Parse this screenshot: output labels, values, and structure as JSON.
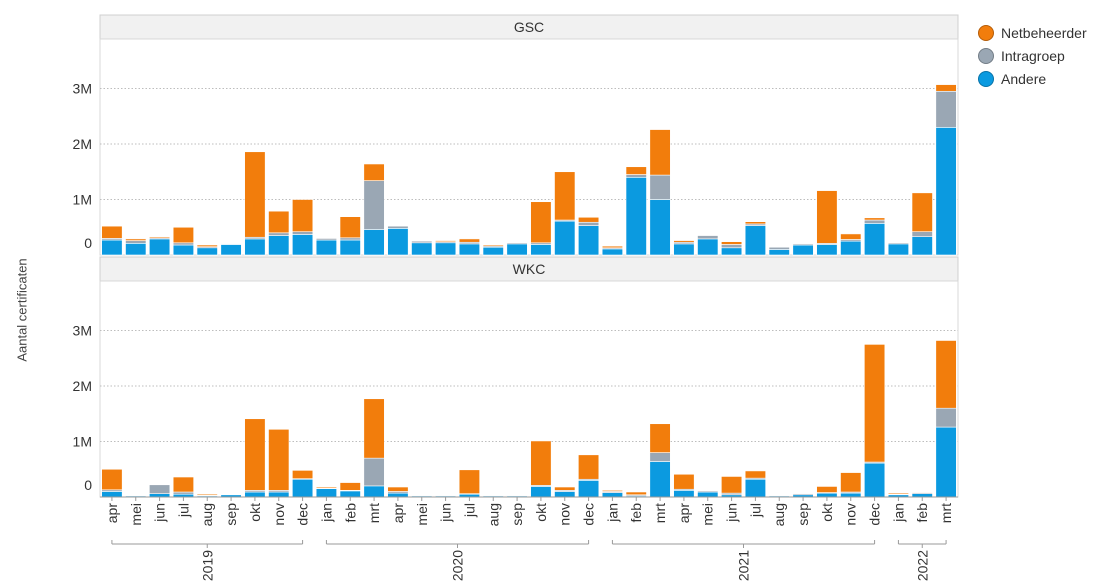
{
  "chart_data": {
    "type": "bar",
    "stacked": true,
    "ylabel": "Aantal certificaten",
    "yticks": [
      "0",
      "1M",
      "2M",
      "3M"
    ],
    "ylim": [
      0,
      3500000
    ],
    "gridlines": true,
    "legend_position": "right",
    "categories": [
      "apr",
      "mei",
      "jun",
      "jul",
      "aug",
      "sep",
      "okt",
      "nov",
      "dec",
      "jan",
      "feb",
      "mrt",
      "apr",
      "mei",
      "jun",
      "jul",
      "aug",
      "sep",
      "okt",
      "nov",
      "dec",
      "jan",
      "feb",
      "mrt",
      "apr",
      "mei",
      "jun",
      "jul",
      "aug",
      "sep",
      "okt",
      "nov",
      "dec",
      "jan",
      "feb",
      "mrt"
    ],
    "year_groups": [
      {
        "label": "2019",
        "start": 0,
        "end": 8
      },
      {
        "label": "2020",
        "start": 9,
        "end": 20
      },
      {
        "label": "2021",
        "start": 21,
        "end": 32
      },
      {
        "label": "2022",
        "start": 33,
        "end": 35
      }
    ],
    "series_meta": [
      {
        "name": "Andere",
        "color": "#0b9ae0"
      },
      {
        "name": "Intragroep",
        "color": "#9aa7b4"
      },
      {
        "name": "Netbeheerder",
        "color": "#f27d0c"
      }
    ],
    "legend_order": [
      "Netbeheerder",
      "Intragroep",
      "Andere"
    ],
    "panels": [
      {
        "title": "GSC",
        "series": [
          {
            "name": "Andere",
            "values": [
              270000,
              210000,
              290000,
              180000,
              130000,
              190000,
              290000,
              350000,
              370000,
              270000,
              270000,
              460000,
              480000,
              220000,
              220000,
              200000,
              140000,
              200000,
              190000,
              610000,
              530000,
              110000,
              1400000,
              1000000,
              200000,
              290000,
              130000,
              530000,
              100000,
              180000,
              190000,
              250000,
              570000,
              200000,
              330000,
              2300000
            ]
          },
          {
            "name": "Intragroep",
            "values": [
              30000,
              50000,
              20000,
              40000,
              20000,
              10000,
              30000,
              50000,
              50000,
              30000,
              40000,
              880000,
              40000,
              30000,
              20000,
              30000,
              20000,
              20000,
              30000,
              20000,
              60000,
              20000,
              50000,
              440000,
              30000,
              60000,
              60000,
              30000,
              40000,
              20000,
              20000,
              30000,
              60000,
              20000,
              90000,
              650000
            ]
          },
          {
            "name": "Netbeheerder",
            "values": [
              220000,
              30000,
              20000,
              280000,
              30000,
              0,
              1540000,
              390000,
              580000,
              10000,
              380000,
              300000,
              0,
              10000,
              20000,
              60000,
              20000,
              0,
              740000,
              870000,
              90000,
              30000,
              140000,
              820000,
              30000,
              0,
              50000,
              40000,
              0,
              0,
              950000,
              100000,
              40000,
              0,
              700000,
              120000
            ]
          }
        ]
      },
      {
        "title": "WKC",
        "series": [
          {
            "name": "Andere",
            "values": [
              100000,
              20000,
              60000,
              50000,
              20000,
              40000,
              90000,
              90000,
              320000,
              150000,
              110000,
              200000,
              70000,
              20000,
              20000,
              50000,
              20000,
              20000,
              190000,
              100000,
              300000,
              80000,
              20000,
              640000,
              120000,
              90000,
              40000,
              320000,
              20000,
              40000,
              70000,
              70000,
              610000,
              40000,
              60000,
              1260000
            ]
          },
          {
            "name": "Intragroep",
            "values": [
              30000,
              10000,
              160000,
              40000,
              10000,
              10000,
              30000,
              30000,
              10000,
              10000,
              10000,
              500000,
              30000,
              10000,
              10000,
              10000,
              10000,
              10000,
              20000,
              20000,
              20000,
              20000,
              20000,
              160000,
              20000,
              20000,
              30000,
              20000,
              10000,
              20000,
              10000,
              20000,
              20000,
              10000,
              20000,
              340000
            ]
          },
          {
            "name": "Netbeheerder",
            "values": [
              370000,
              10000,
              0,
              270000,
              20000,
              0,
              1290000,
              1100000,
              150000,
              20000,
              140000,
              1070000,
              80000,
              0,
              0,
              430000,
              0,
              0,
              800000,
              60000,
              440000,
              20000,
              50000,
              520000,
              270000,
              0,
              300000,
              130000,
              0,
              0,
              110000,
              350000,
              2120000,
              20000,
              10000,
              1220000
            ]
          }
        ]
      }
    ]
  }
}
